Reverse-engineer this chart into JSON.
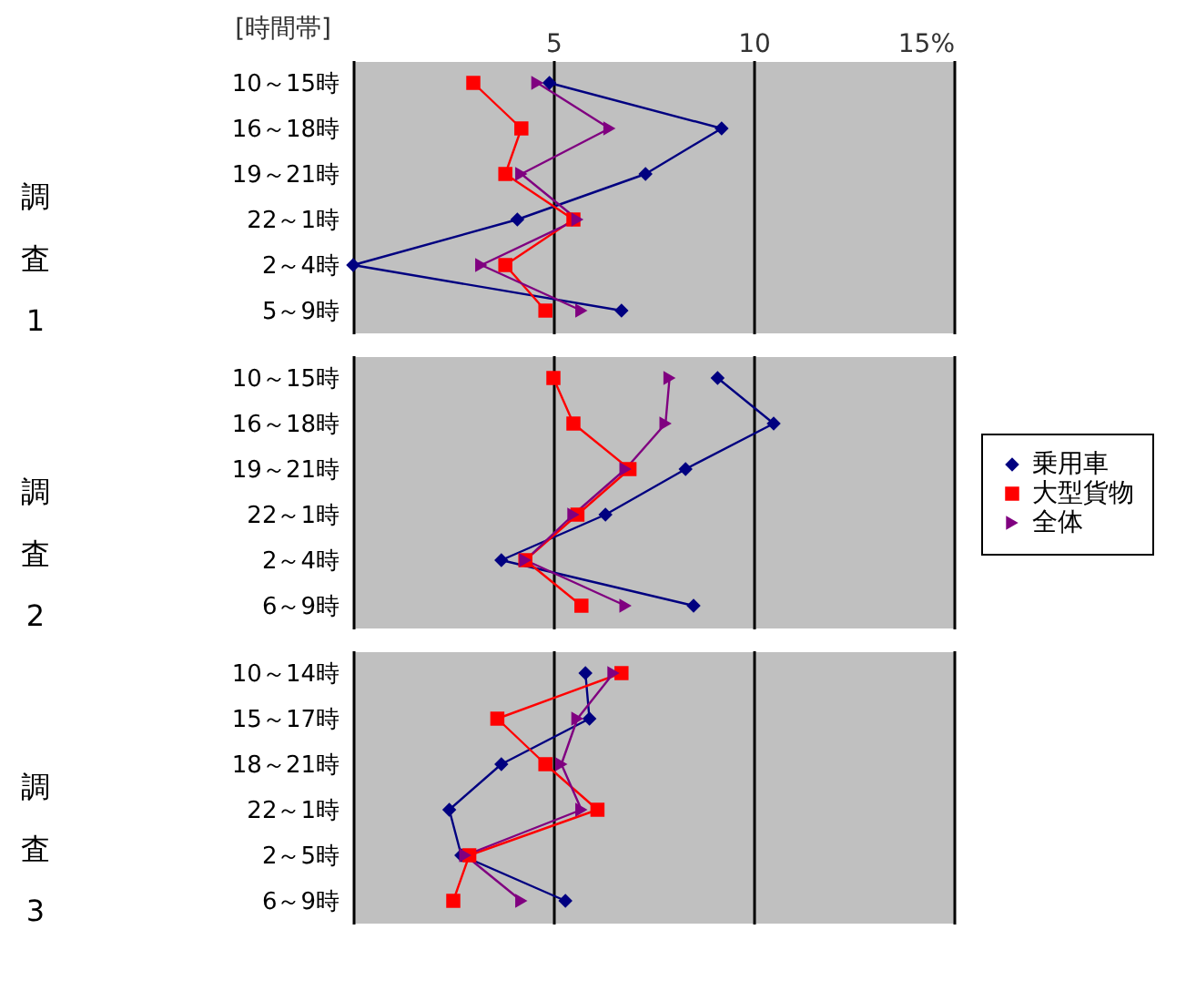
{
  "chart_data": [
    {
      "type": "line",
      "orientation": "horizontal",
      "ylabel": "調査1",
      "annotations": [
        "[時間帯]"
      ],
      "categories": [
        "10～15時",
        "16～18時",
        "19～21時",
        "22～1時",
        "2～4時",
        "5～9時"
      ],
      "xlim": [
        0,
        15
      ],
      "xticks": [
        {
          "value": 0,
          "label": null
        },
        5,
        10,
        {
          "value": 15,
          "label": "15%"
        }
      ],
      "grid": "x",
      "legend": "right",
      "series": [
        {
          "name": "乗用車",
          "color": "#000080",
          "marker": "diamond",
          "values": [
            4.9,
            9.2,
            7.3,
            4.1,
            0.0,
            6.7
          ]
        },
        {
          "name": "大型貨物",
          "color": "#ff0000",
          "marker": "square",
          "values": [
            3.0,
            4.2,
            3.8,
            5.5,
            3.8,
            4.8
          ]
        },
        {
          "name": "全体",
          "color": "#800080",
          "marker": "triangle",
          "values": [
            4.6,
            6.4,
            4.2,
            5.6,
            3.2,
            5.7
          ]
        }
      ]
    },
    {
      "type": "line",
      "orientation": "horizontal",
      "ylabel": "調査2",
      "categories": [
        "10～15時",
        "16～18時",
        "19～21時",
        "22～1時",
        "2～4時",
        "6～9時"
      ],
      "xlim": [
        0,
        15
      ],
      "xticks": [
        0,
        5,
        10,
        15
      ],
      "tick_labels": "y",
      "grid": "x",
      "legend": false,
      "series": [
        {
          "color": "#000080",
          "marker": "diamond",
          "values": [
            9.1,
            10.5,
            8.3,
            6.3,
            3.7,
            8.5
          ]
        },
        {
          "color": "#ff0000",
          "marker": "square",
          "values": [
            5.0,
            5.5,
            6.9,
            5.6,
            4.3,
            5.7
          ]
        },
        {
          "color": "#800080",
          "marker": "triangle",
          "values": [
            7.9,
            7.8,
            6.8,
            5.5,
            4.3,
            6.8
          ]
        }
      ]
    },
    {
      "type": "line",
      "orientation": "horizontal",
      "ylabel": "調査3",
      "categories": [
        "10～14時",
        "15～17時",
        "18～21時",
        "22～1時",
        "2～5時",
        "6～9時"
      ],
      "xlim": [
        0,
        15
      ],
      "xticks": [
        0,
        5,
        10,
        15
      ],
      "tick_labels": "y",
      "grid": "x",
      "legend": false,
      "series": [
        {
          "color": "#000080",
          "marker": "diamond",
          "values": [
            5.8,
            5.9,
            3.7,
            2.4,
            2.7,
            5.3
          ]
        },
        {
          "color": "#ff0000",
          "marker": "square",
          "values": [
            6.7,
            3.6,
            4.8,
            6.1,
            2.9,
            2.5
          ]
        },
        {
          "color": "#800080",
          "marker": "triangle",
          "values": [
            6.5,
            5.6,
            5.2,
            5.7,
            2.8,
            4.2
          ]
        }
      ]
    }
  ]
}
